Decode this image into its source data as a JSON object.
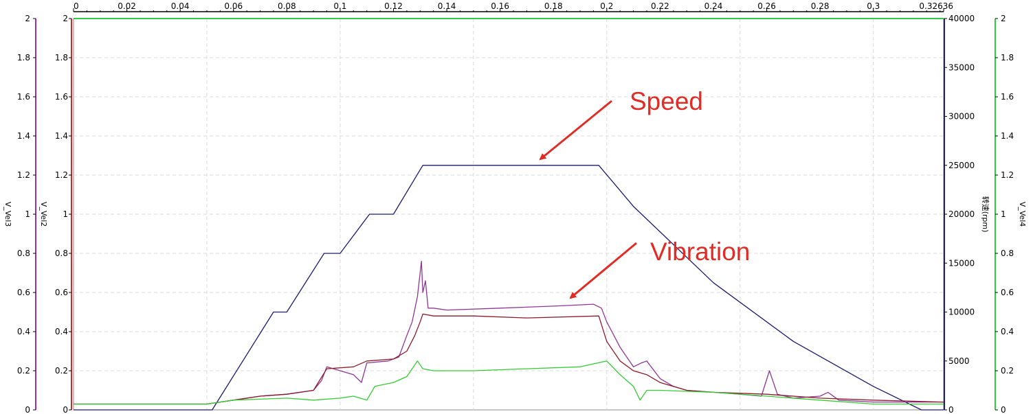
{
  "chart_data": {
    "type": "line",
    "x_axis": {
      "range": [
        0,
        0.32636
      ],
      "ticks": [
        "0",
        "0.02",
        "0.04",
        "0.06",
        "0.08",
        "0.1",
        "0.12",
        "0.14",
        "0.16",
        "0.18",
        "0.2",
        "0.22",
        "0.24",
        "0.26",
        "0.28",
        "0.3",
        "0.32636"
      ],
      "position": "top"
    },
    "y_axes": [
      {
        "id": "vel3",
        "label": "V_Vel3",
        "side": "left-outer",
        "color": "#9b30a0",
        "range": [
          0,
          2
        ],
        "ticks": [
          "0",
          "0.2",
          "0.4",
          "0.6",
          "0.8",
          "1",
          "1.2",
          "1.4",
          "1.6",
          "1.8",
          "2"
        ]
      },
      {
        "id": "vel2",
        "label": "V_Vel2",
        "side": "left-inner",
        "color": "#d62728",
        "range": [
          0,
          2
        ],
        "ticks": [
          "0",
          "0.2",
          "0.4",
          "0.6",
          "0.8",
          "1",
          "1.2",
          "1.4",
          "1.6",
          "1.8",
          "2"
        ]
      },
      {
        "id": "speed",
        "label": "转速(rpm)",
        "side": "right-inner",
        "color": "#1f1f7a",
        "range": [
          0,
          40000
        ],
        "ticks": [
          "0",
          "5000",
          "10000",
          "15000",
          "20000",
          "25000",
          "30000",
          "35000",
          "40000"
        ]
      },
      {
        "id": "vel4",
        "label": "V_Vel4",
        "side": "right-outer",
        "color": "#2ecc40",
        "range": [
          0,
          2
        ],
        "ticks": [
          "0",
          "0.2",
          "0.4",
          "0.6",
          "0.8",
          "1",
          "1.2",
          "1.4",
          "1.6",
          "1.8",
          "2"
        ]
      }
    ],
    "grid": true,
    "series": [
      {
        "axis": "speed",
        "color": "#1a1a6e",
        "x": [
          0,
          0.052,
          0.075,
          0.08,
          0.094,
          0.1,
          0.111,
          0.12,
          0.131,
          0.197,
          0.21,
          0.24,
          0.27,
          0.3,
          0.318,
          0.32636
        ],
        "y": [
          0,
          0,
          10000,
          10000,
          16000,
          16000,
          20000,
          20000,
          25000,
          25000,
          20800,
          13000,
          7000,
          2400,
          0,
          0
        ]
      },
      {
        "axis": "vel3",
        "color": "#8e3596",
        "x": [
          0,
          0.05,
          0.055,
          0.06,
          0.07,
          0.08,
          0.09,
          0.093,
          0.095,
          0.1,
          0.105,
          0.108,
          0.11,
          0.118,
          0.122,
          0.125,
          0.127,
          0.129,
          0.1305,
          0.131,
          0.132,
          0.133,
          0.135,
          0.14,
          0.16,
          0.18,
          0.195,
          0.198,
          0.2,
          0.205,
          0.21,
          0.213,
          0.215,
          0.22,
          0.225,
          0.23,
          0.24,
          0.25,
          0.258,
          0.261,
          0.264,
          0.27,
          0.28,
          0.283,
          0.287,
          0.3,
          0.32636
        ],
        "y": [
          0.03,
          0.03,
          0.04,
          0.05,
          0.07,
          0.08,
          0.1,
          0.15,
          0.22,
          0.2,
          0.18,
          0.14,
          0.24,
          0.25,
          0.27,
          0.38,
          0.45,
          0.58,
          0.76,
          0.6,
          0.66,
          0.52,
          0.52,
          0.51,
          0.52,
          0.53,
          0.54,
          0.52,
          0.45,
          0.32,
          0.22,
          0.24,
          0.25,
          0.16,
          0.12,
          0.1,
          0.09,
          0.08,
          0.07,
          0.2,
          0.08,
          0.06,
          0.07,
          0.09,
          0.05,
          0.04,
          0.04
        ]
      },
      {
        "axis": "vel2",
        "color": "#8b1a2b",
        "x": [
          0,
          0.05,
          0.055,
          0.06,
          0.07,
          0.08,
          0.09,
          0.095,
          0.105,
          0.11,
          0.12,
          0.125,
          0.128,
          0.13,
          0.131,
          0.135,
          0.15,
          0.17,
          0.197,
          0.2,
          0.205,
          0.21,
          0.215,
          0.22,
          0.23,
          0.24,
          0.26,
          0.28,
          0.3,
          0.32636
        ],
        "y": [
          0.03,
          0.03,
          0.04,
          0.05,
          0.07,
          0.08,
          0.1,
          0.21,
          0.22,
          0.25,
          0.26,
          0.3,
          0.38,
          0.45,
          0.49,
          0.48,
          0.48,
          0.47,
          0.48,
          0.35,
          0.25,
          0.2,
          0.18,
          0.14,
          0.1,
          0.09,
          0.08,
          0.06,
          0.05,
          0.04
        ]
      },
      {
        "axis": "vel4",
        "color": "#33cc33",
        "x": [
          0,
          0.05,
          0.055,
          0.06,
          0.08,
          0.09,
          0.1,
          0.105,
          0.11,
          0.113,
          0.12,
          0.125,
          0.129,
          0.131,
          0.135,
          0.15,
          0.17,
          0.19,
          0.2,
          0.205,
          0.21,
          0.2125,
          0.215,
          0.22,
          0.24,
          0.26,
          0.28,
          0.3,
          0.32636
        ],
        "y": [
          0.03,
          0.03,
          0.04,
          0.05,
          0.06,
          0.05,
          0.06,
          0.07,
          0.05,
          0.12,
          0.14,
          0.17,
          0.25,
          0.21,
          0.2,
          0.2,
          0.21,
          0.22,
          0.25,
          0.18,
          0.12,
          0.05,
          0.1,
          0.1,
          0.09,
          0.07,
          0.05,
          0.03,
          0.03
        ]
      }
    ],
    "annotations": [
      {
        "text": "Speed",
        "target_series": "speed"
      },
      {
        "text": "Vibration",
        "target_series": "vel3"
      }
    ]
  }
}
